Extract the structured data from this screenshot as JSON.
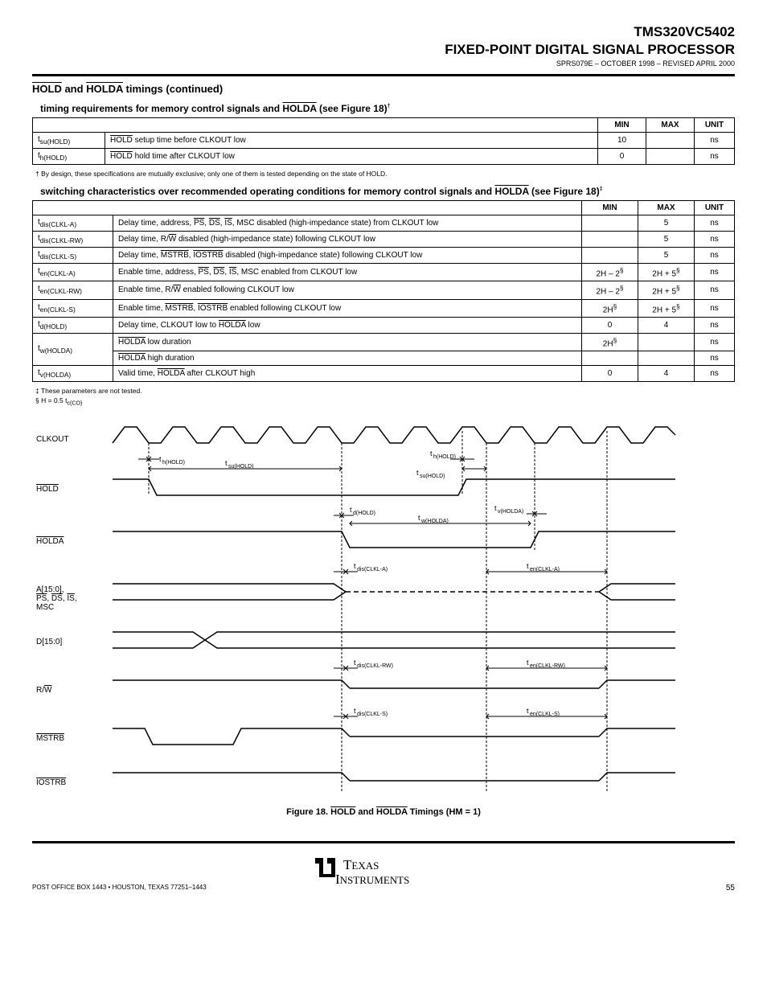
{
  "header": {
    "product": "TMS320VC5402",
    "subtitle": "FIXED-POINT DIGITAL SIGNAL PROCESSOR",
    "docnum": "SPRS079E – OCTOBER 1998 – REVISED APRIL 2000"
  },
  "section_title_parts": [
    "HOLD",
    " and ",
    "HOLDA",
    " timings (continued)"
  ],
  "tables": {
    "t1": {
      "title_parts": [
        "timing requirements for memory control signals and ",
        "HOLDA",
        " (see Figure 18)"
      ],
      "footnote": "†",
      "cols": [
        "",
        "",
        "MIN",
        "MAX",
        "UNIT"
      ],
      "rows": [
        {
          "sym": "t<sub>su(HOLD)</sub>",
          "desc_parts": [
            "<span class='over'>HOLD</span> setup time before CLKOUT low"
          ],
          "min": "10",
          "max": "",
          "unit": "ns"
        },
        {
          "sym": "t<sub>h(HOLD)</sub>",
          "desc_parts": [
            "<span class='over'>HOLD</span> hold time after CLKOUT low"
          ],
          "min": "0",
          "max": "",
          "unit": "ns"
        }
      ],
      "footnote_text": "† By design, these specifications are mutually exclusive; only one of them is tested depending on the state of HOLD."
    },
    "t2": {
      "title_parts": [
        "switching characteristics over recommended operating conditions for memory control signals and ",
        "HOLDA",
        " (see Figure 18)"
      ],
      "footnote": "‡",
      "cols": [
        "",
        "",
        "MIN",
        "MAX",
        "UNIT"
      ],
      "rows": [
        {
          "sym": "t<sub>dis(CLKL-A)</sub>",
          "desc": "Delay time, address, <span class='over'>PS</span>, <span class='over'>DS</span>, <span class='over'>IS</span>, MSC disabled (high-impedance state) from CLKOUT low",
          "min": "",
          "max": "5",
          "unit": "ns"
        },
        {
          "sym": "t<sub>dis(CLKL-RW)</sub>",
          "desc": "Delay time, R/<span class='over'>W</span> disabled (high-impedance state) following CLKOUT low",
          "min": "",
          "max": "5",
          "unit": "ns"
        },
        {
          "sym": "t<sub>dis(CLKL-S)</sub>",
          "desc": "Delay time, <span class='over'>MSTRB</span>, <span class='over'>IOSTRB</span> disabled (high-impedance state) following CLKOUT low",
          "min": "",
          "max": "5",
          "unit": "ns"
        },
        {
          "sym": "t<sub>en(CLKL-A)</sub>",
          "desc": "Enable time, address, <span class='over'>PS</span>, <span class='over'>DS</span>, <span class='over'>IS</span>, MSC enabled from CLKOUT low",
          "min": "2H – 2<sup>§</sup>",
          "max": "2H + 5<sup>§</sup>",
          "unit": "ns"
        },
        {
          "sym": "t<sub>en(CLKL-RW)</sub>",
          "desc": "Enable time, R/<span class='over'>W</span> enabled following CLKOUT low",
          "min": "2H – 2<sup>§</sup>",
          "max": "2H + 5<sup>§</sup>",
          "unit": "ns"
        },
        {
          "sym": "t<sub>en(CLKL-S)</sub>",
          "desc": "Enable time, <span class='over'>MSTRB</span>, <span class='over'>IOSTRB</span> enabled following CLKOUT low",
          "min": "2H<sup>§</sup>",
          "max": "2H + 5<sup>§</sup>",
          "unit": "ns"
        },
        {
          "sym": "t<sub>d(HOLD)</sub>",
          "desc": "Delay time, CLKOUT low to <span class='over'>HOLDA</span> low",
          "min": "0",
          "max": "4",
          "unit": "ns"
        },
        {
          "sym_rowspan": "t<sub>w(HOLDA)</sub>",
          "desc": "<span class='over'>HOLDA</span> low duration",
          "min": "2H<sup>§</sup>",
          "max": "",
          "unit": "ns"
        },
        {
          "sym": "",
          "desc": "<span class='over'>HOLDA</span> high duration",
          "min": "",
          "max": "",
          "unit": "ns"
        },
        {
          "sym": "t<sub>v(HOLDA)</sub>",
          "desc": "Valid time, <span class='over'>HOLDA</span> after CLKOUT high",
          "min": "0",
          "max": "4",
          "unit": "ns"
        }
      ],
      "footnote_text1": "‡ These parameters are not tested.",
      "footnote_text2": "§ H = 0.5 t<sub>c(CO)</sub>"
    }
  },
  "diagram": {
    "signals": [
      "CLKOUT",
      "HOLD",
      "HOLDA",
      "A[15:0], PS, DS, IS, MSC",
      "D[15:0]",
      "R/W",
      "MSTRB",
      "IOSTRB"
    ],
    "tlabels": {
      "su_hold": "t<sub>su(HOLD)</sub>",
      "h_hold": "t<sub>h(HOLD)</sub>",
      "d_hold": "t<sub>d(HOLD)</sub>",
      "v_holda": "t<sub>v(HOLDA)</sub>",
      "w_holda": "t<sub>w(HOLDA)</sub>",
      "dis_a": "t<sub>dis(CLKL-A)</sub>",
      "en_a": "t<sub>en(CLKL-A)</sub>",
      "dis_rw": "t<sub>dis(CLKL-RW)</sub>",
      "en_rw": "t<sub>en(CLKL-RW)</sub>",
      "dis_s": "t<sub>dis(CLKL-S)</sub>",
      "en_s": "t<sub>en(CLKL-S)</sub>"
    },
    "caption_parts": [
      "Figure 18. ",
      "HOLD",
      " and ",
      "HOLDA",
      " Timings (HM = 1)"
    ]
  },
  "footer": {
    "legal": "POST OFFICE BOX 1443 • HOUSTON, TEXAS 77251–1443",
    "page": "55"
  },
  "colors": {
    "text": "#000000",
    "bg": "#ffffff"
  }
}
